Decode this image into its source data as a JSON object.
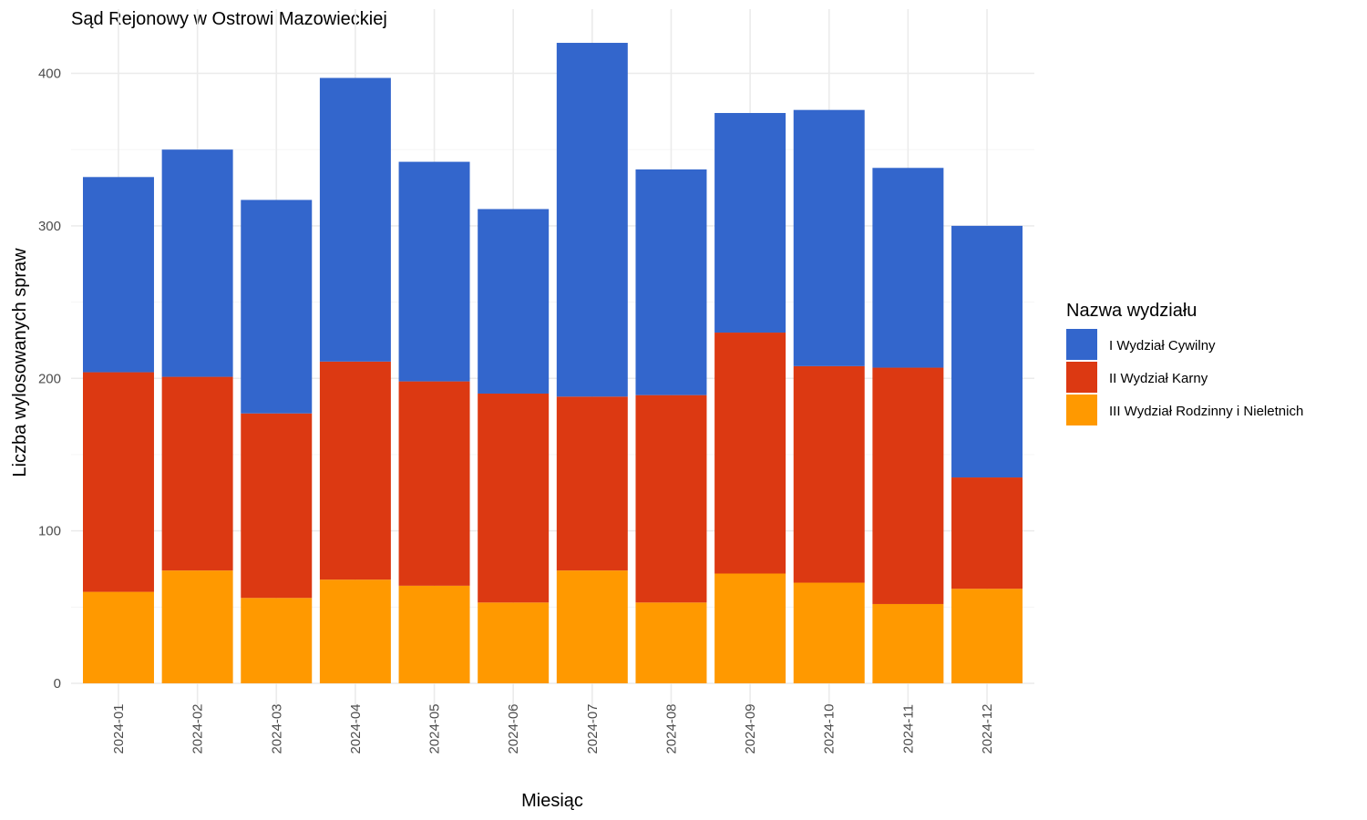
{
  "chart_data": {
    "type": "bar",
    "stacked": true,
    "title": "Sąd Rejonowy w Ostrowi Mazowieckiej",
    "xlabel": "Miesiąc",
    "ylabel": "Liczba wylosowanych spraw",
    "ylim": [
      0,
      430
    ],
    "yticks": [
      0,
      100,
      200,
      300,
      400
    ],
    "grid": true,
    "legend_position": "right",
    "legend_title": "Nazwa wydziału",
    "categories": [
      "2024-01",
      "2024-02",
      "2024-03",
      "2024-04",
      "2024-05",
      "2024-06",
      "2024-07",
      "2024-08",
      "2024-09",
      "2024-10",
      "2024-11",
      "2024-12"
    ],
    "series": [
      {
        "name": "III Wydział Rodzinny i Nieletnich",
        "color": "#FF9900",
        "values": [
          60,
          74,
          56,
          68,
          64,
          53,
          74,
          53,
          72,
          66,
          52,
          62
        ]
      },
      {
        "name": "II Wydział Karny",
        "color": "#DC3912",
        "values": [
          144,
          127,
          121,
          143,
          134,
          137,
          114,
          136,
          158,
          142,
          155,
          73
        ]
      },
      {
        "name": "I Wydział Cywilny",
        "color": "#3366CC",
        "values": [
          128,
          149,
          140,
          186,
          144,
          121,
          232,
          148,
          144,
          168,
          131,
          165
        ]
      }
    ],
    "legend_order": [
      "I Wydział Cywilny",
      "II Wydział Karny",
      "III Wydział Rodzinny i Nieletnich"
    ]
  }
}
